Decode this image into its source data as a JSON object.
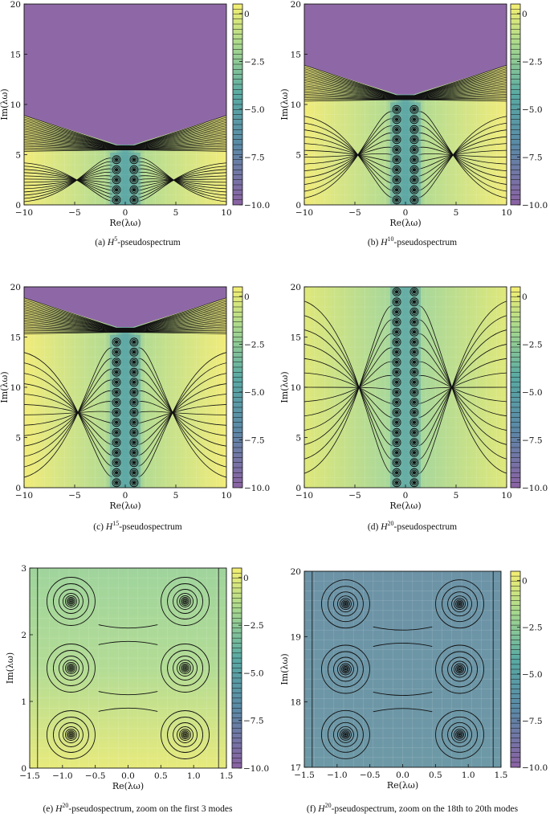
{
  "figure": {
    "panels": [
      {
        "caption_prefix": "(a) ",
        "caption_var": "H",
        "caption_sup": "5",
        "caption_suffix": "-pseudospectrum"
      },
      {
        "caption_prefix": "(b) ",
        "caption_var": "H",
        "caption_sup": "10",
        "caption_suffix": "-pseudospectrum"
      },
      {
        "caption_prefix": "(c) ",
        "caption_var": "H",
        "caption_sup": "15",
        "caption_suffix": "-pseudospectrum"
      },
      {
        "caption_prefix": "(d) ",
        "caption_var": "H",
        "caption_sup": "20",
        "caption_suffix": "-pseudospectrum"
      },
      {
        "caption_prefix": "(e) ",
        "caption_var": "H",
        "caption_sup": "20",
        "caption_suffix": "-pseudospectrum, zoom on the first 3 modes"
      },
      {
        "caption_prefix": "(f) ",
        "caption_var": "H",
        "caption_sup": "20",
        "caption_suffix": "-pseudospectrum, zoom on the 18th to 20th modes"
      }
    ]
  },
  "colors": {
    "purple": "#8e68a6",
    "teal": "#5ba6a6",
    "green": "#9fd49a",
    "yellow": "#f4ee7c",
    "contour": "#111111"
  },
  "chart_data": [
    {
      "type": "heatmap",
      "title": "",
      "xlabel": "Re(λω)",
      "ylabel": "Im(λω)",
      "xlim": [
        -10,
        10
      ],
      "ylim": [
        0,
        20
      ],
      "xticks": [
        -10,
        -5,
        0,
        5,
        10
      ],
      "xtick_labels": [
        "−10",
        "−5",
        "0",
        "5",
        "10"
      ],
      "yticks": [
        0,
        5,
        10,
        15,
        20
      ],
      "ytick_labels": [
        "0",
        "5",
        "10",
        "15",
        "20"
      ],
      "colorbar": {
        "range": [
          -10.0,
          0.5
        ],
        "ticks": [
          0,
          -2.5,
          -5.0,
          -7.5,
          -10.0
        ],
        "tick_labels": [
          "0",
          "−2.5",
          "−5.0",
          "−7.5",
          "−10.0"
        ]
      },
      "n_modes_shown": 5,
      "mode_re": [
        -0.87,
        0.87
      ],
      "mode_im_start": 0.5,
      "mode_im_step": 1,
      "v_boundary_height": 6,
      "grid": true
    },
    {
      "type": "heatmap",
      "title": "",
      "xlabel": "Re(λω)",
      "ylabel": "Im(λω)",
      "xlim": [
        -10,
        10
      ],
      "ylim": [
        0,
        20
      ],
      "xticks": [
        -10,
        -5,
        0,
        5,
        10
      ],
      "xtick_labels": [
        "−10",
        "−5",
        "0",
        "5",
        "10"
      ],
      "yticks": [
        0,
        5,
        10,
        15,
        20
      ],
      "ytick_labels": [
        "0",
        "5",
        "10",
        "15",
        "20"
      ],
      "colorbar": {
        "range": [
          -10.0,
          0.5
        ],
        "ticks": [
          0,
          -2.5,
          -5.0,
          -7.5,
          -10.0
        ],
        "tick_labels": [
          "0",
          "−2.5",
          "−5.0",
          "−7.5",
          "−10.0"
        ]
      },
      "n_modes_shown": 10,
      "mode_re": [
        -0.87,
        0.87
      ],
      "mode_im_start": 0.5,
      "mode_im_step": 1,
      "v_boundary_height": 11,
      "grid": true
    },
    {
      "type": "heatmap",
      "title": "",
      "xlabel": "Re(λω)",
      "ylabel": "Im(λω)",
      "xlim": [
        -10,
        10
      ],
      "ylim": [
        0,
        20
      ],
      "xticks": [
        -10,
        -5,
        0,
        5,
        10
      ],
      "xtick_labels": [
        "−10",
        "−5",
        "0",
        "5",
        "10"
      ],
      "yticks": [
        0,
        5,
        10,
        15,
        20
      ],
      "ytick_labels": [
        "0",
        "5",
        "10",
        "15",
        "20"
      ],
      "colorbar": {
        "range": [
          -10.0,
          0.5
        ],
        "ticks": [
          0,
          -2.5,
          -5.0,
          -7.5,
          -10.0
        ],
        "tick_labels": [
          "0",
          "−2.5",
          "−5.0",
          "−7.5",
          "−10.0"
        ]
      },
      "n_modes_shown": 15,
      "mode_re": [
        -0.87,
        0.87
      ],
      "mode_im_start": 0.5,
      "mode_im_step": 1,
      "v_boundary_height": 16,
      "grid": true
    },
    {
      "type": "heatmap",
      "title": "",
      "xlabel": "Re(λω)",
      "ylabel": "Im(λω)",
      "xlim": [
        -10,
        10
      ],
      "ylim": [
        0,
        20
      ],
      "xticks": [
        -10,
        -5,
        0,
        5,
        10
      ],
      "xtick_labels": [
        "−10",
        "−5",
        "0",
        "5",
        "10"
      ],
      "yticks": [
        0,
        5,
        10,
        15,
        20
      ],
      "ytick_labels": [
        "0",
        "5",
        "10",
        "15",
        "20"
      ],
      "colorbar": {
        "range": [
          -10.0,
          0.5
        ],
        "ticks": [
          0,
          -2.5,
          -5.0,
          -7.5,
          -10.0
        ],
        "tick_labels": [
          "0",
          "−2.5",
          "−5.0",
          "−7.5",
          "−10.0"
        ]
      },
      "n_modes_shown": 20,
      "mode_re": [
        -0.87,
        0.87
      ],
      "mode_im_start": 0.5,
      "mode_im_step": 1,
      "v_boundary_height": null,
      "grid": true
    },
    {
      "type": "heatmap",
      "title": "",
      "xlabel": "Re(λω)",
      "ylabel": "Im(λω)",
      "xlim": [
        -1.5,
        1.5
      ],
      "ylim": [
        0,
        3
      ],
      "xticks": [
        -1.5,
        -1.0,
        -0.5,
        0.0,
        0.5,
        1.0,
        1.5
      ],
      "xtick_labels": [
        "−1.5",
        "−1.0",
        "−0.5",
        "0.0",
        "0.5",
        "1.0",
        "1.5"
      ],
      "yticks": [
        0,
        1,
        2,
        3
      ],
      "ytick_labels": [
        "0",
        "1",
        "2",
        "3"
      ],
      "colorbar": {
        "range": [
          -10.0,
          0.5
        ],
        "ticks": [
          0,
          -2.5,
          -5.0,
          -7.5,
          -10.0
        ],
        "tick_labels": [
          "0",
          "−2.5",
          "−5.0",
          "−7.5",
          "−10.0"
        ]
      },
      "modes": [
        [
          -0.87,
          0.5
        ],
        [
          0.87,
          0.5
        ],
        [
          -0.87,
          1.5
        ],
        [
          0.87,
          1.5
        ],
        [
          -0.87,
          2.5
        ],
        [
          0.87,
          2.5
        ]
      ],
      "grid": true
    },
    {
      "type": "heatmap",
      "title": "",
      "xlabel": "Re(λω)",
      "ylabel": "Im(λω)",
      "xlim": [
        -1.5,
        1.5
      ],
      "ylim": [
        17,
        20
      ],
      "xticks": [
        -1.5,
        -1.0,
        -0.5,
        0.0,
        0.5,
        1.0,
        1.5
      ],
      "xtick_labels": [
        "−1.5",
        "−1.0",
        "−0.5",
        "0.0",
        "0.5",
        "1.0",
        "1.5"
      ],
      "yticks": [
        17,
        18,
        19,
        20
      ],
      "ytick_labels": [
        "17",
        "18",
        "19",
        "20"
      ],
      "colorbar": {
        "range": [
          -10.0,
          0.5
        ],
        "ticks": [
          0,
          -2.5,
          -5.0,
          -7.5,
          -10.0
        ],
        "tick_labels": [
          "0",
          "−2.5",
          "−5.0",
          "−7.5",
          "−10.0"
        ]
      },
      "modes": [
        [
          -0.87,
          17.5
        ],
        [
          0.87,
          17.5
        ],
        [
          -0.87,
          18.5
        ],
        [
          0.87,
          18.5
        ],
        [
          -0.87,
          19.5
        ],
        [
          0.87,
          19.5
        ]
      ],
      "grid": true
    }
  ]
}
